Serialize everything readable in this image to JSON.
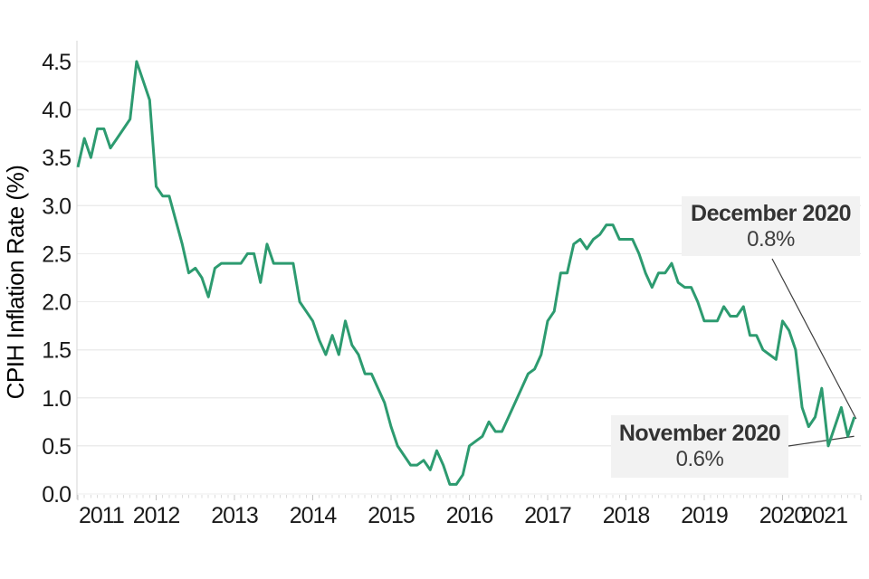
{
  "chart_data": {
    "type": "line",
    "title": "",
    "xlabel": "",
    "ylabel": "CPIH Inflation Rate (%)",
    "ylim": [
      0,
      4.5
    ],
    "grid": "horizontal-only",
    "legend": "none",
    "x_tick_labels": [
      "2011",
      "2012",
      "2013",
      "2014",
      "2015",
      "2016",
      "2017",
      "2018",
      "2019",
      "2020",
      "2021"
    ],
    "y_tick_labels": [
      "0.0",
      "0.5",
      "1.0",
      "1.5",
      "2.0",
      "2.5",
      "3.0",
      "3.5",
      "4.0",
      "4.5"
    ],
    "series": [
      {
        "name": "CPIH 12-month inflation rate (%)",
        "frequency": "monthly",
        "start_month": "2011-01",
        "end_month": "2020-12",
        "values": [
          3.4,
          3.7,
          3.5,
          3.8,
          3.8,
          3.6,
          3.7,
          3.8,
          3.9,
          4.5,
          4.3,
          4.1,
          3.2,
          3.1,
          3.1,
          2.85,
          2.6,
          2.3,
          2.35,
          2.25,
          2.05,
          2.35,
          2.4,
          2.4,
          2.4,
          2.4,
          2.5,
          2.5,
          2.2,
          2.6,
          2.4,
          2.4,
          2.4,
          2.4,
          2.0,
          1.9,
          1.8,
          1.6,
          1.45,
          1.65,
          1.45,
          1.8,
          1.55,
          1.45,
          1.25,
          1.25,
          1.1,
          0.95,
          0.7,
          0.5,
          0.4,
          0.3,
          0.3,
          0.35,
          0.25,
          0.45,
          0.3,
          0.1,
          0.1,
          0.2,
          0.5,
          0.55,
          0.6,
          0.75,
          0.65,
          0.65,
          0.8,
          0.95,
          1.1,
          1.25,
          1.3,
          1.45,
          1.8,
          1.9,
          2.3,
          2.3,
          2.6,
          2.65,
          2.55,
          2.65,
          2.7,
          2.8,
          2.8,
          2.65,
          2.65,
          2.65,
          2.5,
          2.3,
          2.15,
          2.3,
          2.3,
          2.4,
          2.2,
          2.15,
          2.15,
          2.0,
          1.8,
          1.8,
          1.8,
          1.95,
          1.85,
          1.85,
          1.95,
          1.65,
          1.65,
          1.5,
          1.45,
          1.4,
          1.8,
          1.7,
          1.5,
          0.9,
          0.7,
          0.8,
          1.1,
          0.5,
          0.7,
          0.9,
          0.6,
          0.8
        ]
      }
    ],
    "annotations": [
      {
        "label": "December 2020",
        "value_label": "0.8%",
        "month": "2020-12",
        "value": 0.8
      },
      {
        "label": "November 2020",
        "value_label": "0.6%",
        "month": "2020-11",
        "value": 0.6
      }
    ],
    "colors": {
      "line": "#2d9b70",
      "annotation_box_bg": "#f2f2f2",
      "annotation_title_text": "#333333",
      "annotation_value_text": "#3e3e3e",
      "leader_line": "#3d3d3d",
      "gridline": "#ececec",
      "axis_line": "#d6d6d6",
      "month_tick": "#dcdcdc",
      "year_tick": "#c4c4c4",
      "tick_label": "#1a1a1a",
      "background": "#ffffff"
    }
  }
}
